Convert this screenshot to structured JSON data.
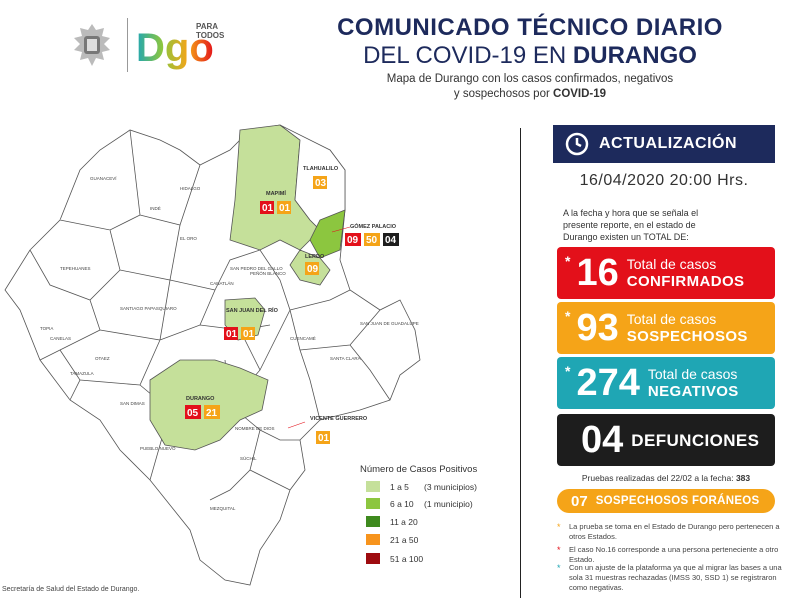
{
  "header": {
    "title_line1": "COMUNICADO TÉCNICO DIARIO",
    "title_line2_a": "DEL COVID-19 EN ",
    "title_line2_b": "DURANGO",
    "subtitle_line1": "Mapa de Durango con los casos confirmados, negativos",
    "subtitle_line2_a": "y sospechosos por ",
    "subtitle_line2_b": "COVID-19",
    "logo_small_text": "PARA TODOS",
    "logo_text": "Dgo"
  },
  "update": {
    "label": "ACTUALIZACIÓN",
    "date_time": "16/04/2020  20:00 Hrs.",
    "intro": "A la fecha y hora que se señala el presente reporte, en el estado de Durango existen un TOTAL DE:"
  },
  "stats": {
    "confirmed": {
      "star": "*",
      "value": "16",
      "line1": "Total de casos",
      "line2": "CONFIRMADOS"
    },
    "suspected": {
      "star": "*",
      "value": "93",
      "line1": "Total de casos",
      "line2": "SOSPECHOSOS"
    },
    "negative": {
      "star": "*",
      "value": "274",
      "line1": "Total de casos",
      "line2": "NEGATIVOS"
    },
    "deaths": {
      "value": "04",
      "line2": "DEFUNCIONES"
    }
  },
  "tests": {
    "label": "Pruebas realizadas del 22/02 a la fecha:",
    "value": "383"
  },
  "foreign": {
    "value": "07",
    "label": "SOSPECHOSOS FORÁNEOS"
  },
  "notes": [
    {
      "star": "*",
      "color": "#f5a418",
      "text": "La prueba se toma en el Estado de Durango pero pertenecen a otros Estados."
    },
    {
      "star": "*",
      "color": "#e3101a",
      "text": "El caso No.16 corresponde a una persona perteneciente a otro Estado."
    },
    {
      "star": "*",
      "color": "#1fa6b4",
      "text": "Con un ajuste de la plataforma ya que al migrar las bases a una sola 31 muestras rechazadas (IMSS 30, SSD 1) se registraron como negativas."
    }
  ],
  "legend": {
    "title": "Número de Casos Positivos",
    "items": [
      {
        "label": "1 a 5",
        "note": "(3 municipios)",
        "color": "#c5e09a"
      },
      {
        "label": "6 a 10",
        "note": "(1 municipio)",
        "color": "#8cc63f"
      },
      {
        "label": "11 a 20",
        "note": "",
        "color": "#3e8a1e"
      },
      {
        "label": "21 a 50",
        "note": "",
        "color": "#f7941d"
      },
      {
        "label": "51 a 100",
        "note": "",
        "color": "#9e0b0f"
      }
    ]
  },
  "municipalities": [
    {
      "name": "TLAHUALILO",
      "chips": [
        {
          "v": "03",
          "c": "#f5a418"
        }
      ]
    },
    {
      "name": "MAPIMÍ",
      "chips": [
        {
          "v": "01",
          "c": "#e3101a"
        },
        {
          "v": "01",
          "c": "#f5a418"
        }
      ]
    },
    {
      "name": "GÓMEZ PALACIO",
      "chips": [
        {
          "v": "09",
          "c": "#e3101a"
        },
        {
          "v": "50",
          "c": "#f5a418"
        },
        {
          "v": "04",
          "c": "#1d1d1d"
        }
      ]
    },
    {
      "name": "LERDO",
      "chips": [
        {
          "v": "09",
          "c": "#f5a418"
        }
      ]
    },
    {
      "name": "SAN JUAN DEL RÍO",
      "chips": [
        {
          "v": "01",
          "c": "#e3101a"
        },
        {
          "v": "01",
          "c": "#f5a418"
        }
      ]
    },
    {
      "name": "DURANGO",
      "chips": [
        {
          "v": "05",
          "c": "#e3101a"
        },
        {
          "v": "21",
          "c": "#f5a418"
        }
      ]
    },
    {
      "name": "VICENTE GUERRERO",
      "chips": [
        {
          "v": "01",
          "c": "#f5a418"
        }
      ]
    }
  ],
  "source": "Secretaría de Salud del Estado de Durango."
}
